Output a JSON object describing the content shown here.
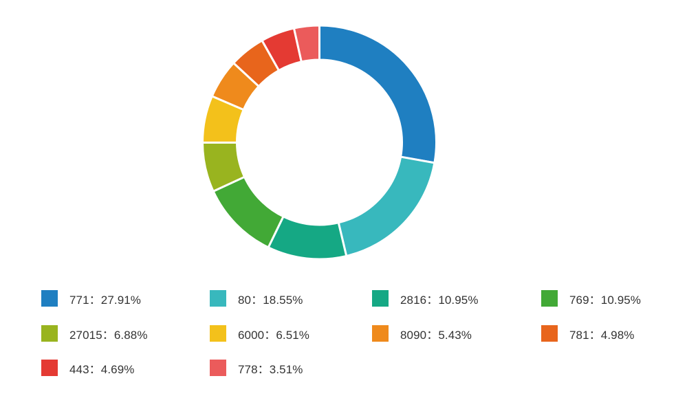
{
  "chart_data": {
    "type": "pie",
    "variant": "donut",
    "legend_position": "bottom",
    "separator": "：",
    "slices": [
      {
        "label": "771",
        "value": 27.91,
        "percent_text": "27.91%",
        "color": "#1f7fc1"
      },
      {
        "label": "80",
        "value": 18.55,
        "percent_text": "18.55%",
        "color": "#38b8bd"
      },
      {
        "label": "2816",
        "value": 10.95,
        "percent_text": "10.95%",
        "color": "#15a884"
      },
      {
        "label": "769",
        "value": 10.95,
        "percent_text": "10.95%",
        "color": "#42a936"
      },
      {
        "label": "27015",
        "value": 6.88,
        "percent_text": "6.88%",
        "color": "#99b41f"
      },
      {
        "label": "6000",
        "value": 6.51,
        "percent_text": "6.51%",
        "color": "#f3c11b"
      },
      {
        "label": "8090",
        "value": 5.43,
        "percent_text": "5.43%",
        "color": "#ef8a1c"
      },
      {
        "label": "781",
        "value": 4.98,
        "percent_text": "4.98%",
        "color": "#e8651c"
      },
      {
        "label": "443",
        "value": 4.69,
        "percent_text": "4.69%",
        "color": "#e43a33"
      },
      {
        "label": "778",
        "value": 3.51,
        "percent_text": "3.51%",
        "color": "#eb5b5b"
      }
    ]
  }
}
